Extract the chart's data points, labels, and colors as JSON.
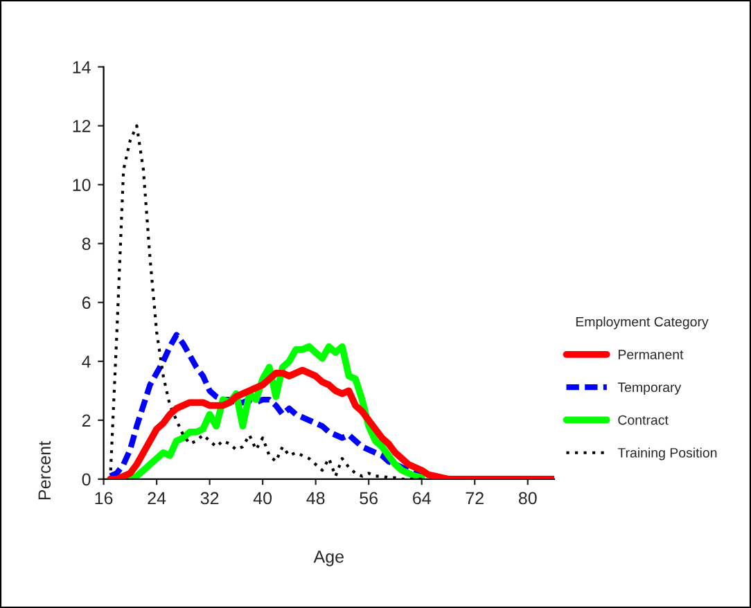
{
  "chart_data": {
    "type": "line",
    "xlabel": "Age",
    "ylabel": "Percent",
    "legend_title": "Employment Category",
    "legend": "right",
    "grid": false,
    "x": [
      17,
      18,
      19,
      20,
      21,
      22,
      23,
      24,
      25,
      26,
      27,
      28,
      29,
      30,
      31,
      32,
      33,
      34,
      35,
      36,
      37,
      38,
      39,
      40,
      41,
      42,
      43,
      44,
      45,
      46,
      47,
      48,
      49,
      50,
      51,
      52,
      53,
      54,
      55,
      56,
      57,
      58,
      59,
      60,
      61,
      62,
      63,
      64,
      65,
      66,
      67,
      68,
      69,
      70,
      71,
      72,
      73,
      74,
      75,
      76,
      77,
      78,
      79,
      80,
      81,
      82,
      83,
      84
    ],
    "xlim": [
      16,
      84
    ],
    "xticks": [
      16,
      24,
      32,
      40,
      48,
      56,
      64,
      72,
      80
    ],
    "ylim": [
      0,
      14
    ],
    "yticks": [
      0,
      2,
      4,
      6,
      8,
      10,
      12,
      14
    ],
    "series": [
      {
        "name": "Permanent",
        "color": "#ff0000",
        "line_style": "solid",
        "values": [
          0,
          0,
          0.1,
          0.2,
          0.5,
          0.9,
          1.3,
          1.7,
          1.9,
          2.2,
          2.4,
          2.5,
          2.6,
          2.6,
          2.6,
          2.5,
          2.5,
          2.5,
          2.6,
          2.8,
          2.9,
          3.0,
          3.1,
          3.2,
          3.4,
          3.6,
          3.6,
          3.5,
          3.6,
          3.7,
          3.6,
          3.5,
          3.3,
          3.2,
          3.0,
          2.9,
          3.0,
          2.5,
          2.3,
          2.0,
          1.7,
          1.4,
          1.2,
          0.9,
          0.7,
          0.5,
          0.4,
          0.3,
          0.15,
          0.1,
          0.05,
          0,
          0,
          0,
          0,
          0,
          0,
          0,
          0,
          0,
          0,
          0,
          0,
          0,
          0,
          0,
          0,
          0
        ]
      },
      {
        "name": "Temporary",
        "color": "#0000ff",
        "line_style": "dashed",
        "values": [
          0.1,
          0.2,
          0.5,
          1.0,
          1.8,
          2.5,
          3.2,
          3.6,
          4.0,
          4.5,
          4.9,
          4.6,
          4.2,
          3.8,
          3.5,
          3.0,
          2.8,
          2.7,
          2.7,
          2.6,
          2.6,
          2.7,
          2.6,
          2.7,
          2.7,
          2.5,
          2.2,
          2.4,
          2.2,
          2.1,
          2.0,
          1.9,
          1.8,
          1.6,
          1.5,
          1.4,
          1.5,
          1.3,
          1.1,
          1.0,
          0.9,
          0.8,
          0.6,
          0.5,
          0.4,
          0.3,
          0.2,
          0.15,
          null,
          null,
          null,
          null,
          null,
          null,
          null,
          null,
          null,
          null,
          null,
          null,
          null,
          null,
          null,
          null,
          null,
          null,
          null,
          null
        ]
      },
      {
        "name": "Contract",
        "color": "#00ff00",
        "line_style": "solid",
        "values": [
          0,
          0,
          0,
          0,
          0.1,
          0.3,
          0.5,
          0.7,
          0.9,
          0.8,
          1.3,
          1.4,
          1.6,
          1.6,
          1.7,
          2.2,
          1.8,
          2.7,
          2.6,
          2.9,
          1.8,
          2.9,
          2.7,
          3.4,
          3.8,
          2.8,
          3.8,
          4.0,
          4.4,
          4.4,
          4.5,
          4.3,
          4.1,
          4.5,
          4.3,
          4.5,
          3.5,
          3.4,
          2.7,
          1.8,
          1.3,
          1.1,
          0.8,
          0.5,
          0.3,
          0.2,
          0.1,
          0.05,
          null,
          null,
          null,
          null,
          null,
          null,
          null,
          null,
          null,
          null,
          null,
          null,
          null,
          null,
          null,
          null,
          null,
          null,
          null,
          null
        ]
      },
      {
        "name": "Training Position",
        "color": "#000000",
        "line_style": "dotted",
        "values": [
          0,
          5,
          10.5,
          11.5,
          12,
          10.5,
          7.5,
          5,
          3.5,
          2.5,
          2,
          1.5,
          1.2,
          1.3,
          1.5,
          1.3,
          1.1,
          1.3,
          1.2,
          1.0,
          1.1,
          1.5,
          1.0,
          1.4,
          0.8,
          0.6,
          1.1,
          0.8,
          0.9,
          0.8,
          0.7,
          0.5,
          0.3,
          0.7,
          0.1,
          0.7,
          0.4,
          0.2,
          0.1,
          0.2,
          0.1,
          0.1,
          0.05,
          0.05,
          0,
          0,
          0,
          0,
          null,
          null,
          null,
          null,
          null,
          null,
          null,
          null,
          null,
          null,
          null,
          null,
          null,
          null,
          null,
          null,
          null,
          null,
          null,
          null
        ]
      }
    ]
  }
}
